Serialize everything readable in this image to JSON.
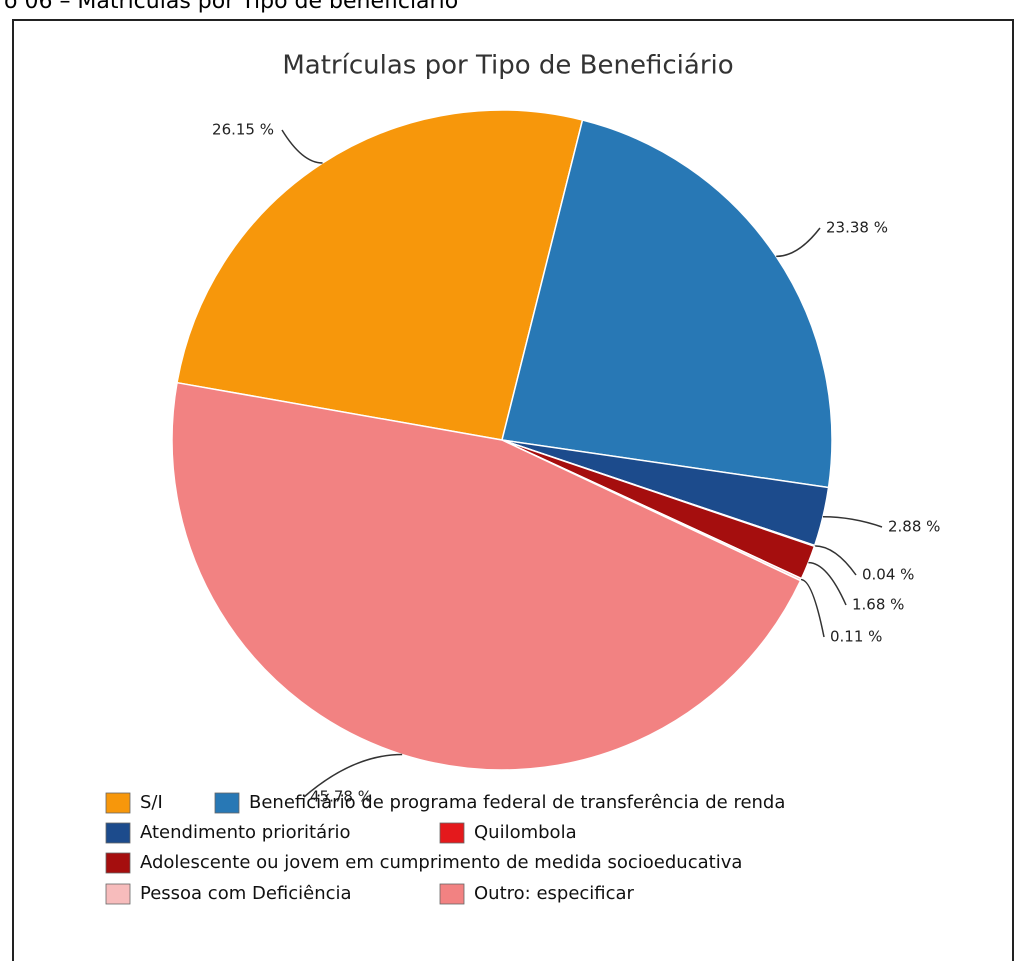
{
  "caption": "o 06 – Matrículas por Tipo de beneficiário",
  "chart_data": {
    "type": "pie",
    "title": "Matrículas por Tipo de Beneficiário",
    "categories": [
      "S/I",
      "Beneficiário de programa federal de transferência de renda",
      "Atendimento prioritário",
      "Quilombola",
      "Adolescente ou jovem em cumprimento de medida socioeducativa",
      "Pessoa com Deficiência",
      "Outro: especificar"
    ],
    "values": [
      26.15,
      23.38,
      2.88,
      0.04,
      1.68,
      0.11,
      45.78
    ],
    "value_labels": [
      "26.15 %",
      "23.38 %",
      "2.88 %",
      "0.04 %",
      "1.68 %",
      "0.11 %",
      "45.78 %"
    ],
    "colors": [
      "#f7970b",
      "#2878b5",
      "#1c4b8c",
      "#e4191c",
      "#a50e0e",
      "#f7bcbc",
      "#f28282"
    ],
    "legend": "bottom"
  }
}
